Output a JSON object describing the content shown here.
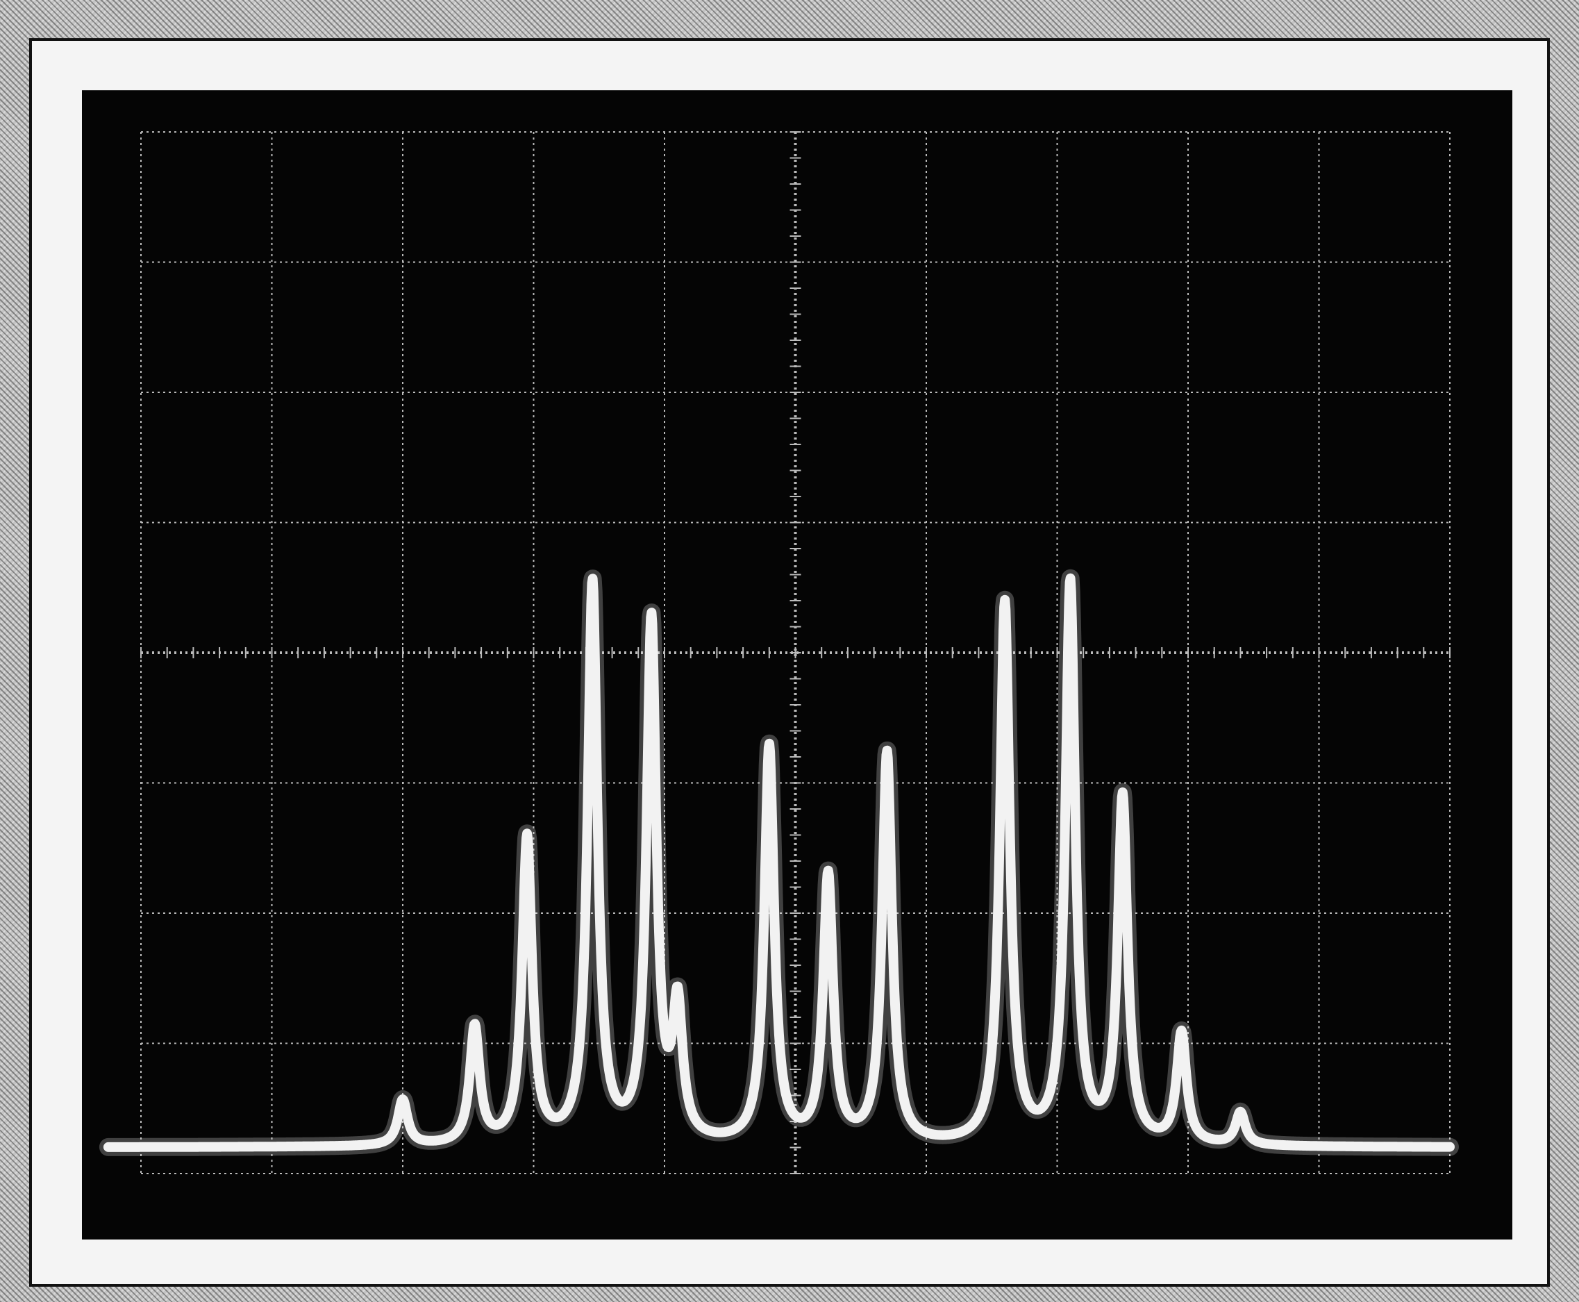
{
  "chart_data": {
    "type": "line",
    "title": "",
    "xlabel": "",
    "ylabel": "",
    "graticule": {
      "x_divisions": 10,
      "y_divisions": 8,
      "grid": true
    },
    "xlim": [
      0,
      10
    ],
    "ylim": [
      0,
      8
    ],
    "baseline": 0.2,
    "series": [
      {
        "peaks": [
          {
            "x": 2.0,
            "y": 0.55
          },
          {
            "x": 2.55,
            "y": 1.1
          },
          {
            "x": 2.95,
            "y": 2.55
          },
          {
            "x": 3.45,
            "y": 4.5
          },
          {
            "x": 3.9,
            "y": 4.2
          },
          {
            "x": 4.1,
            "y": 1.2
          },
          {
            "x": 4.8,
            "y": 3.25
          },
          {
            "x": 5.25,
            "y": 2.25
          },
          {
            "x": 5.7,
            "y": 3.2
          },
          {
            "x": 6.6,
            "y": 4.35
          },
          {
            "x": 7.1,
            "y": 4.5
          },
          {
            "x": 7.5,
            "y": 2.85
          },
          {
            "x": 7.95,
            "y": 1.05
          },
          {
            "x": 8.4,
            "y": 0.45
          }
        ]
      }
    ]
  },
  "colors": {
    "screen": "#050505",
    "trace": "#f2f2f2",
    "grid": "#bbbbbb"
  }
}
